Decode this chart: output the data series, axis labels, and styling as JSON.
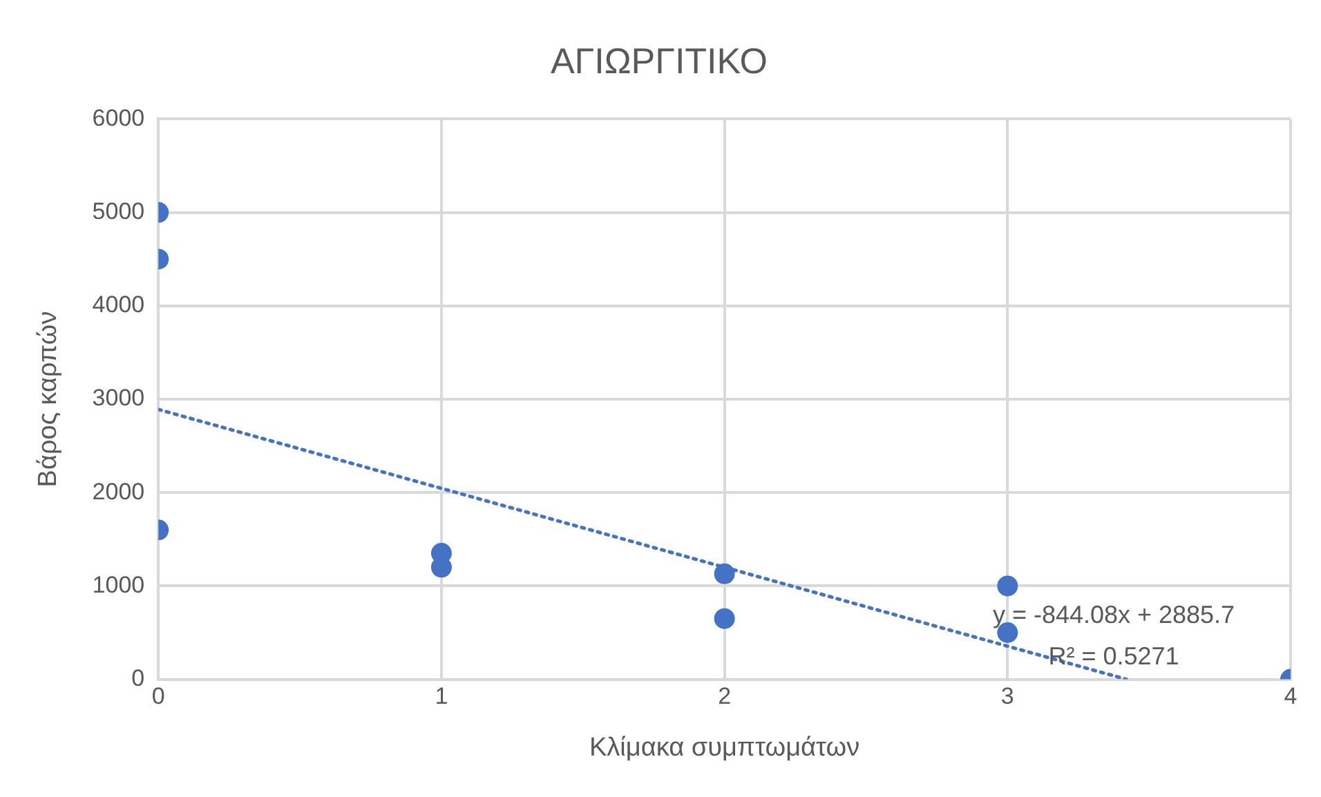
{
  "chart_data": {
    "type": "scatter",
    "title": "ΑΓΙΩΡΓΙΤΙΚΟ",
    "xlabel": "Κλίμακα συμπτωμάτων",
    "ylabel": "Βάρος καρπών",
    "series": [
      {
        "type": "scatter",
        "color": "#4472c4",
        "marker": "circle",
        "x": [
          0,
          0,
          0,
          1,
          1,
          2,
          2,
          3,
          3,
          4
        ],
        "values": [
          5000,
          4500,
          1600,
          1350,
          1200,
          1130,
          650,
          1000,
          500,
          0
        ]
      },
      {
        "type": "line",
        "color": "#4472c4",
        "marker": "none",
        "line_style": "dotted",
        "x": [
          0,
          3.42
        ],
        "values": [
          2890,
          0
        ]
      }
    ],
    "xlim": [
      0,
      4
    ],
    "xticks": [
      0,
      1,
      2,
      3,
      4
    ],
    "ylim": [
      0,
      6000
    ],
    "yticks": [
      0,
      1000,
      2000,
      3000,
      4000,
      5000,
      6000
    ],
    "grid": true,
    "legend": false,
    "annotations": [
      "y = -844.08x + 2885.7",
      "R² = 0.5271"
    ]
  }
}
